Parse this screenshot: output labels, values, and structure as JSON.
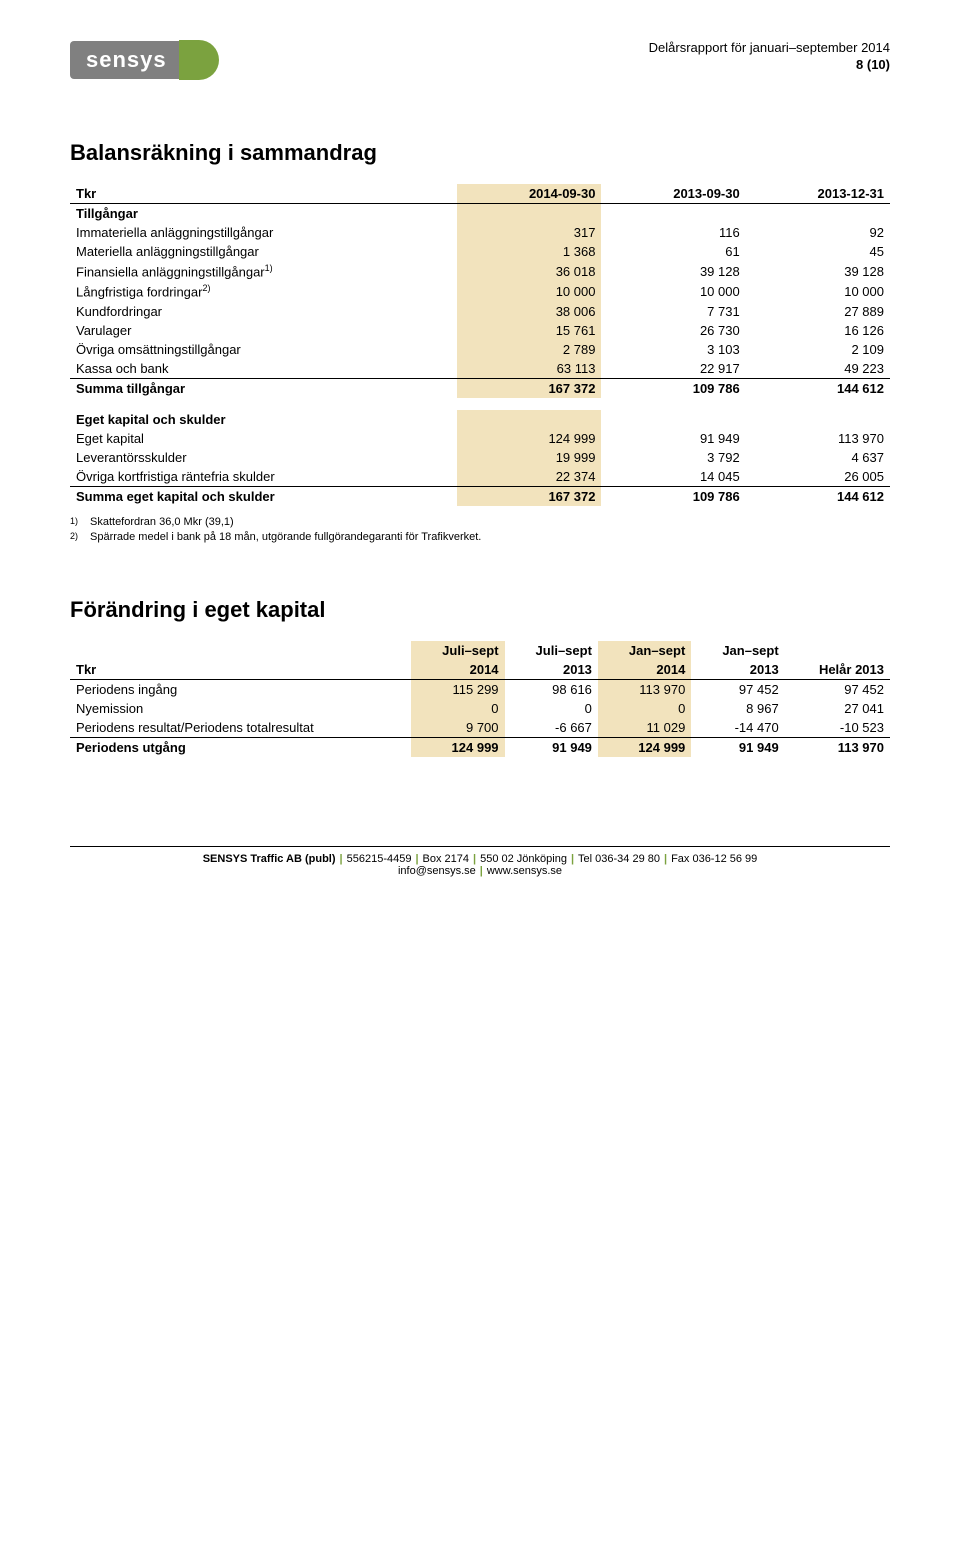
{
  "header": {
    "logo_text": "sensys",
    "report_title": "Delårsrapport för januari–september 2014",
    "page_num": "8 (10)"
  },
  "section1": {
    "title": "Balansräkning i sammandrag",
    "col_label": "Tkr",
    "cols": [
      "2014-09-30",
      "2013-09-30",
      "2013-12-31"
    ],
    "group1_label": "Tillgångar",
    "rows1": [
      {
        "label": "Immateriella anläggningstillgångar",
        "v": [
          "317",
          "116",
          "92"
        ]
      },
      {
        "label": "Materiella anläggningstillgångar",
        "v": [
          "1 368",
          "61",
          "45"
        ]
      },
      {
        "label": "Finansiella anläggningstillgångar",
        "sup": "1)",
        "v": [
          "36 018",
          "39 128",
          "39 128"
        ]
      },
      {
        "label": "Långfristiga fordringar",
        "sup": "2)",
        "v": [
          "10 000",
          "10 000",
          "10 000"
        ]
      },
      {
        "label": "Kundfordringar",
        "v": [
          "38 006",
          "7 731",
          "27 889"
        ]
      },
      {
        "label": "Varulager",
        "v": [
          "15 761",
          "26 730",
          "16 126"
        ]
      },
      {
        "label": "Övriga omsättningstillgångar",
        "v": [
          "2 789",
          "3 103",
          "2 109"
        ]
      },
      {
        "label": "Kassa och bank",
        "v": [
          "63 113",
          "22 917",
          "49 223"
        ]
      }
    ],
    "sum1": {
      "label": "Summa tillgångar",
      "v": [
        "167 372",
        "109 786",
        "144 612"
      ]
    },
    "group2_label": "Eget kapital och skulder",
    "rows2": [
      {
        "label": "Eget kapital",
        "v": [
          "124 999",
          "91 949",
          "113 970"
        ]
      },
      {
        "label": "Leverantörsskulder",
        "v": [
          "19 999",
          "3 792",
          "4 637"
        ]
      },
      {
        "label": "Övriga kortfristiga räntefria skulder",
        "v": [
          "22 374",
          "14 045",
          "26 005"
        ]
      }
    ],
    "sum2": {
      "label": "Summa eget kapital och skulder",
      "v": [
        "167 372",
        "109 786",
        "144 612"
      ]
    },
    "footnotes": [
      {
        "marker": "1)",
        "text": "Skattefordran 36,0 Mkr (39,1)"
      },
      {
        "marker": "2)",
        "text": "Spärrade medel i bank på 18 mån, utgörande fullgörandegaranti för Trafikverket."
      }
    ]
  },
  "section2": {
    "title": "Förändring i eget kapital",
    "col_label": "Tkr",
    "col_top": [
      "Juli–sept",
      "Juli–sept",
      "Jan–sept",
      "Jan–sept",
      ""
    ],
    "col_bot": [
      "2014",
      "2013",
      "2014",
      "2013",
      "Helår 2013"
    ],
    "rows": [
      {
        "label": "Periodens ingång",
        "v": [
          "115 299",
          "98 616",
          "113 970",
          "97 452",
          "97 452"
        ]
      },
      {
        "label": "Nyemission",
        "v": [
          "0",
          "0",
          "0",
          "8 967",
          "27 041"
        ]
      },
      {
        "label": "Periodens resultat/Periodens totalresultat",
        "v": [
          "9 700",
          "-6 667",
          "11 029",
          "-14 470",
          "-10 523"
        ]
      }
    ],
    "sum": {
      "label": "Periodens utgång",
      "v": [
        "124 999",
        "91 949",
        "124 999",
        "91 949",
        "113 970"
      ]
    }
  },
  "footer": {
    "line1_parts": [
      "SENSYS Traffic AB (publ)",
      "556215-4459",
      "Box 2174",
      "550 02 Jönköping",
      "Tel 036-34 29 80",
      "Fax 036-12 56 99"
    ],
    "line2_parts": [
      "info@sensys.se",
      "www.sensys.se"
    ]
  },
  "style": {
    "highlight_bg": "#f2e3bd",
    "accent_green": "#7ba23f",
    "logo_gray": "#808080"
  }
}
